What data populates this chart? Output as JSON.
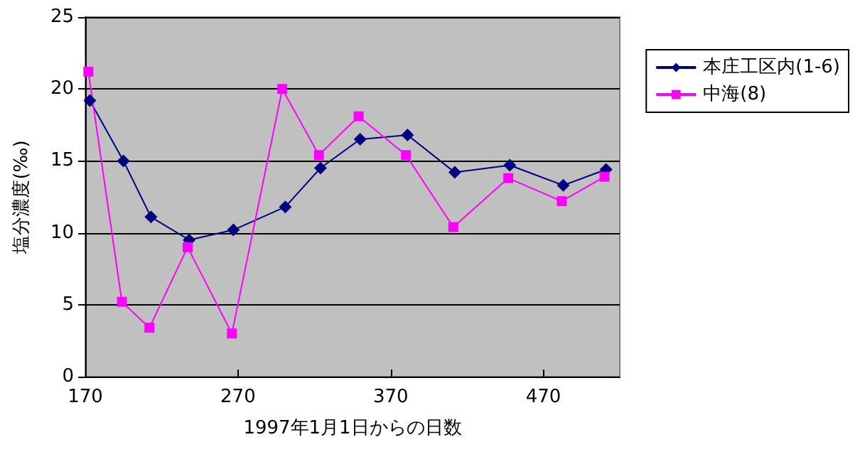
{
  "chart_data": {
    "type": "line",
    "xlabel": "1997年1月1日からの日数",
    "ylabel": "塩分濃度(‰)",
    "xlim": [
      170,
      520
    ],
    "xticks": [
      170,
      270,
      370,
      470
    ],
    "ylim": [
      0,
      25
    ],
    "yticks": [
      0,
      5,
      10,
      15,
      20,
      25
    ],
    "grid": "y",
    "legend": "right",
    "series": [
      {
        "name": "本庄工区内(1-6)",
        "color": "#000080",
        "marker": "diamond",
        "x": [
          173,
          195,
          213,
          238,
          267,
          301,
          324,
          350,
          381,
          412,
          448,
          483,
          511
        ],
        "values": [
          19.2,
          15.0,
          11.1,
          9.5,
          10.2,
          11.8,
          14.5,
          16.5,
          16.8,
          14.2,
          14.7,
          13.3,
          14.4
        ]
      },
      {
        "name": "中海(8)",
        "color": "#ff00ff",
        "marker": "square",
        "x": [
          172,
          194,
          212,
          237,
          266,
          299,
          323,
          349,
          380,
          411,
          447,
          482,
          510
        ],
        "values": [
          21.2,
          5.2,
          3.4,
          9.0,
          3.0,
          20.0,
          15.4,
          18.1,
          15.4,
          10.4,
          13.8,
          12.2,
          13.9
        ]
      }
    ]
  }
}
